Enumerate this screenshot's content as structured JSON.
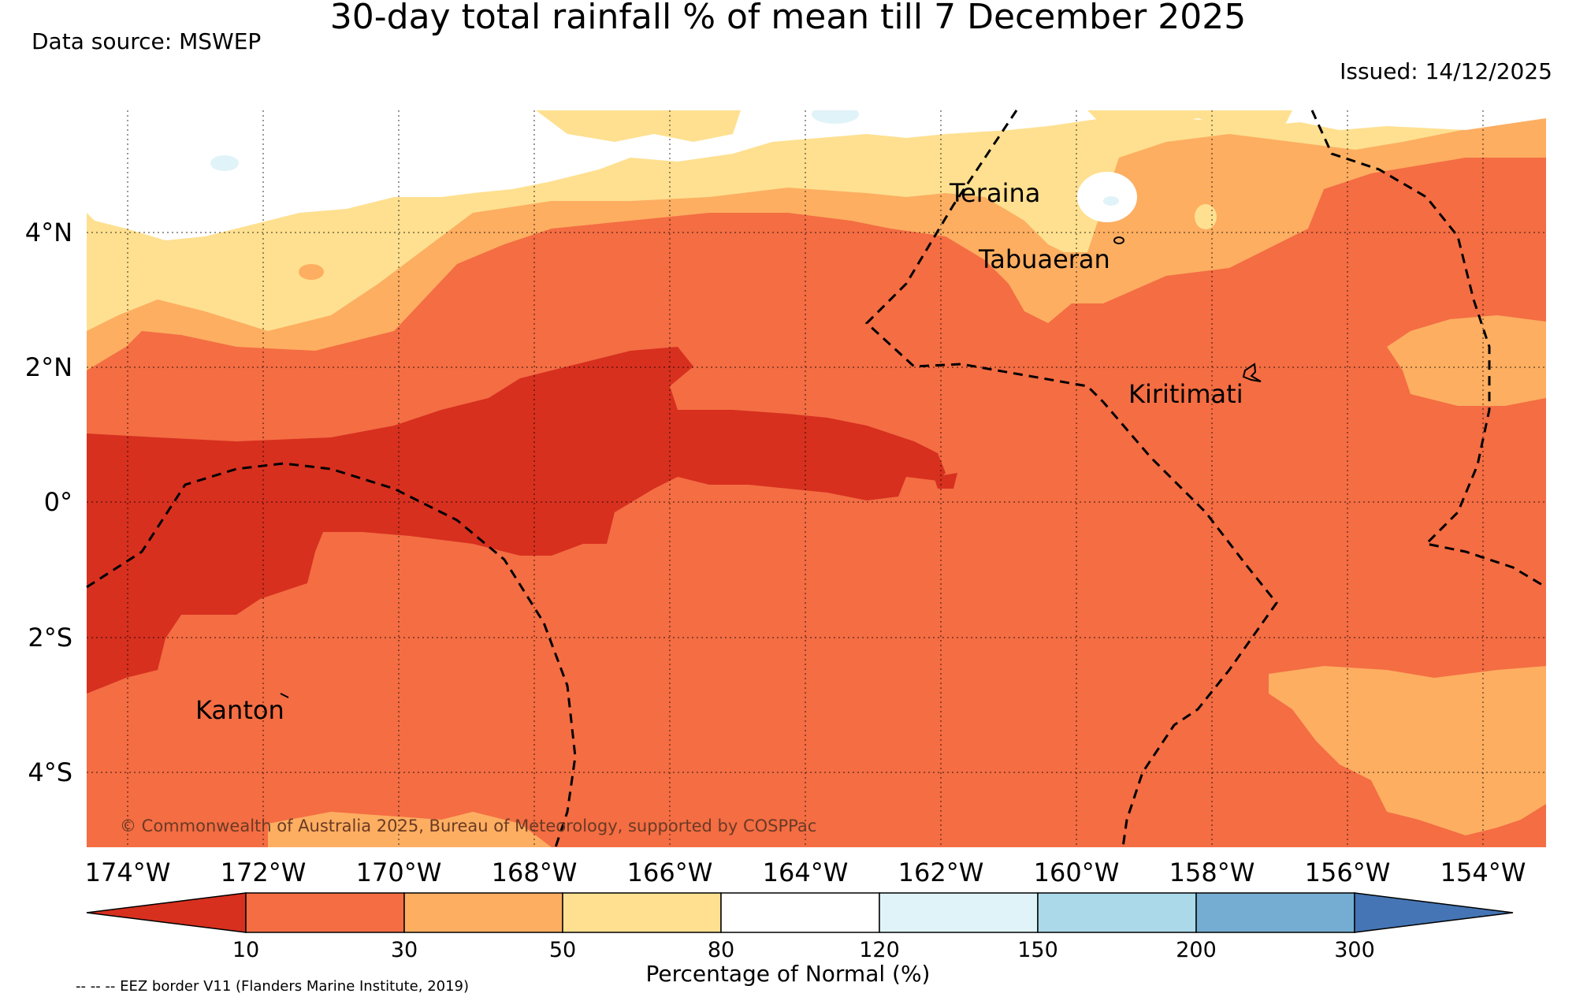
{
  "title": "30-day total rainfall % of mean till 7 December 2025",
  "data_source": "Data source: MSWEP",
  "issued": "Issued: 14/12/2025",
  "map": {
    "longitude_labels": [
      "174°W",
      "172°W",
      "170°W",
      "168°W",
      "166°W",
      "164°W",
      "162°W",
      "160°W",
      "158°W",
      "156°W",
      "154°W"
    ],
    "latitude_labels": [
      "4°N",
      "2°N",
      "0°",
      "2°S",
      "4°S"
    ],
    "places": {
      "teraina": "Teraina",
      "tabuaeran": "Tabuaeran",
      "kiritimati": "Kiritimati",
      "kanton": "Kanton"
    },
    "copyright": "© Commonwealth of Australia 2025, Bureau of Meteorology, supported by COSPPac"
  },
  "colorbar": {
    "label": "Percentage of Normal (%)",
    "ticks": [
      "10",
      "30",
      "50",
      "80",
      "120",
      "150",
      "200",
      "300"
    ],
    "colors": {
      "lt10": "#d7301f",
      "r10_30": "#f46d43",
      "r30_50": "#fdae61",
      "r50_80": "#fee090",
      "r80_120": "#ffffff",
      "r120_150": "#e0f3f8",
      "r150_200": "#abd9e9",
      "r200_300": "#74add1",
      "gt300": "#4575b4"
    }
  },
  "legend_note": "-- -- -- EEZ border V11 (Flanders Marine Institute, 2019)"
}
